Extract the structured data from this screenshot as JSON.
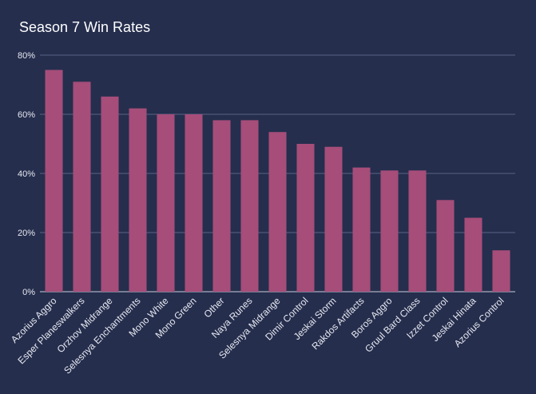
{
  "chart_data": {
    "type": "bar",
    "title": "Season 7 Win Rates",
    "xlabel": "",
    "ylabel": "",
    "categories": [
      "Azorius Aggro",
      "Esper Planeswalkers",
      "Orzhov Midrange",
      "Selesnya Enchantments",
      "Mono White",
      "Mono Green",
      "Other",
      "Naya Runes",
      "Selesnya Midrange",
      "Dimir Control",
      "Jeskai Storm",
      "Rakdos Artifacts",
      "Boros Aggro",
      "Gruul Bard Class",
      "Izzet Control",
      "Jeskai Hinata",
      "Azorius Control"
    ],
    "values": [
      75,
      71,
      66,
      62,
      60,
      60,
      58,
      58,
      54,
      50,
      49,
      42,
      41,
      41,
      31,
      25,
      14
    ],
    "ylim": [
      0,
      80
    ],
    "yticks": [
      0,
      20,
      40,
      60,
      80
    ],
    "ytick_labels": [
      "0%",
      "20%",
      "40%",
      "60%",
      "80%"
    ],
    "grid": true,
    "legend": "none",
    "colors": {
      "background": "#252e4d",
      "bar": "#a64d79",
      "grid": "#5a6385",
      "axis": "#c8ccd8",
      "text": "#e6e8f0"
    }
  }
}
